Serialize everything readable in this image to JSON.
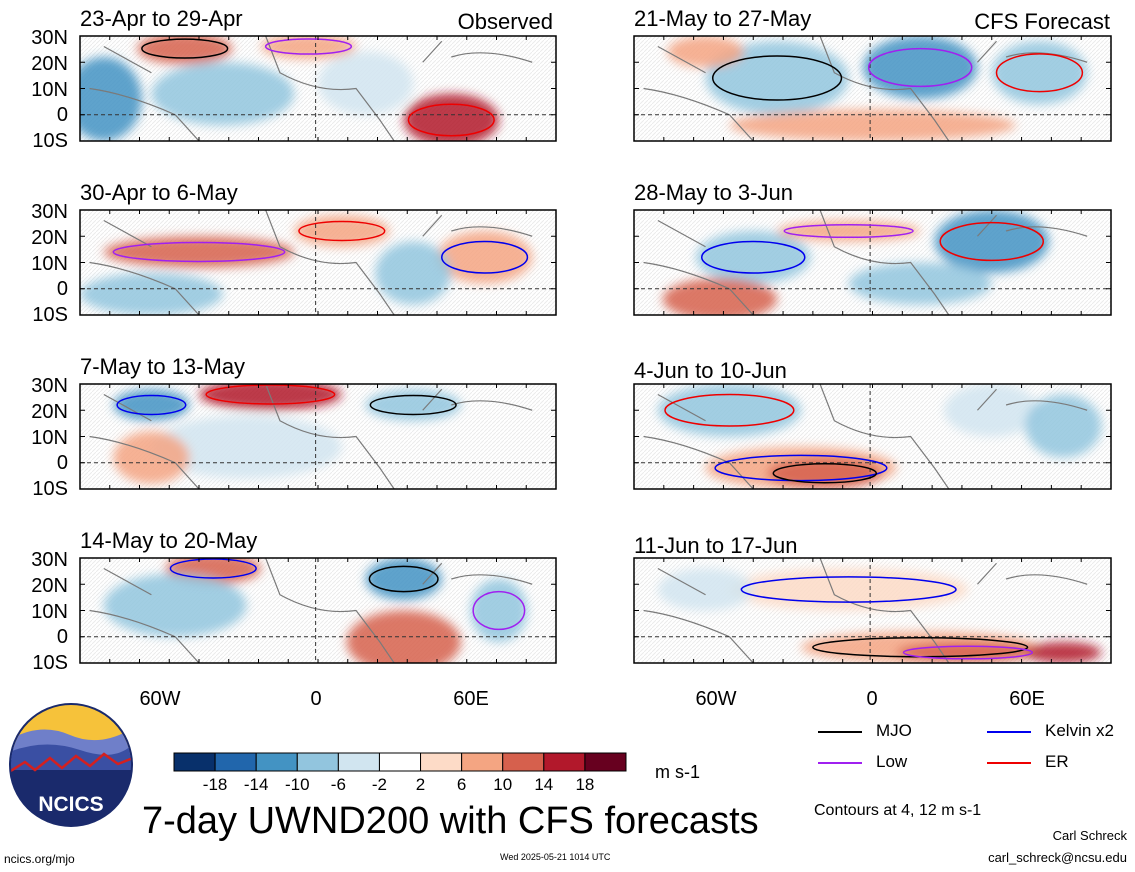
{
  "title": "7-day UWND200 with CFS forecasts",
  "observed_label": "Observed",
  "forecast_label": "CFS Forecast",
  "units": "m s-1",
  "contour_note": "Contours at 4, 12 m s-1",
  "author": "Carl Schreck",
  "email": "carl_schreck@ncsu.edu",
  "website": "ncics.org/mjo",
  "timestamp": "Wed 2025-05-21 1014 UTC",
  "logo_text": "NCICS",
  "lat_labels": [
    "30N",
    "20N",
    "10N",
    "0",
    "10S"
  ],
  "lon_labels": [
    "60W",
    "0",
    "60E"
  ],
  "colorbar": {
    "ticks": [
      "-18",
      "-14",
      "-10",
      "-6",
      "-2",
      "2",
      "6",
      "10",
      "14",
      "18"
    ],
    "colors": [
      "#08306b",
      "#2166ac",
      "#4393c3",
      "#92c5de",
      "#d1e5f0",
      "#ffffff",
      "#fddbc7",
      "#f4a582",
      "#d6604d",
      "#b2182b",
      "#67001f"
    ]
  },
  "legend": [
    {
      "name": "MJO",
      "color": "#000000"
    },
    {
      "name": "Kelvin x2",
      "color": "#0000ee"
    },
    {
      "name": "Low",
      "color": "#a020f0"
    },
    {
      "name": "ER",
      "color": "#ee0000"
    }
  ],
  "panels": [
    {
      "id": "obs1",
      "title": "23-Apr to 29-Apr",
      "column": "observed"
    },
    {
      "id": "obs2",
      "title": "30-Apr to 6-May",
      "column": "observed"
    },
    {
      "id": "obs3",
      "title": "7-May to 13-May",
      "column": "observed"
    },
    {
      "id": "obs4",
      "title": "14-May to 20-May",
      "column": "observed"
    },
    {
      "id": "fc1",
      "title": "21-May to 27-May",
      "column": "forecast"
    },
    {
      "id": "fc2",
      "title": "28-May to 3-Jun",
      "column": "forecast"
    },
    {
      "id": "fc3",
      "title": "4-Jun to 10-Jun",
      "column": "forecast"
    },
    {
      "id": "fc4",
      "title": "11-Jun to 17-Jun",
      "column": "forecast"
    }
  ]
}
